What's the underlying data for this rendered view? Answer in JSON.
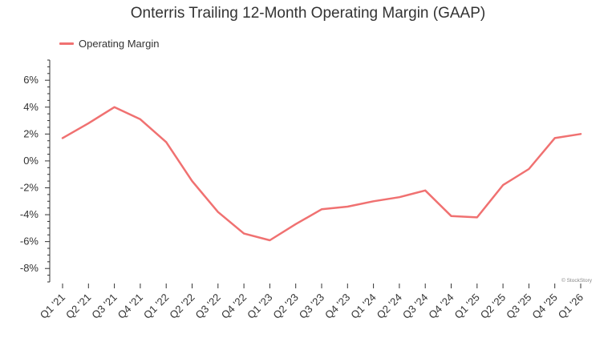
{
  "chart_data": {
    "type": "line",
    "title": "Onterris Trailing 12-Month Operating Margin (GAAP)",
    "xlabel": "",
    "ylabel": "",
    "categories": [
      "Q1 '21",
      "Q2 '21",
      "Q3 '21",
      "Q4 '21",
      "Q1 '22",
      "Q2 '22",
      "Q3 '22",
      "Q4 '22",
      "Q1 '23",
      "Q2 '23",
      "Q3 '23",
      "Q4 '23",
      "Q1 '24",
      "Q2 '24",
      "Q3 '24",
      "Q4 '24",
      "Q1 '25",
      "Q2 '25",
      "Q3 '25",
      "Q4 '25",
      "Q1 '26"
    ],
    "series": [
      {
        "name": "Operating Margin",
        "color": "#f07171",
        "values": [
          1.7,
          2.8,
          4.0,
          3.1,
          1.4,
          -1.5,
          -3.8,
          -5.4,
          -5.9,
          -4.7,
          -3.6,
          -3.4,
          -3.0,
          -2.7,
          -2.2,
          -4.1,
          -4.2,
          -1.8,
          -0.6,
          1.7,
          2.0
        ]
      }
    ],
    "ylim": [
      -9,
      7.5
    ],
    "yticks": [
      6,
      4,
      2,
      0,
      -2,
      -4,
      -6,
      -8
    ],
    "ytick_labels": [
      "6%",
      "4%",
      "2%",
      "0%",
      "-2%",
      "-4%",
      "-6%",
      "-8%"
    ],
    "grid": false,
    "legend_position": "top-left"
  },
  "watermark": "© StockStory"
}
